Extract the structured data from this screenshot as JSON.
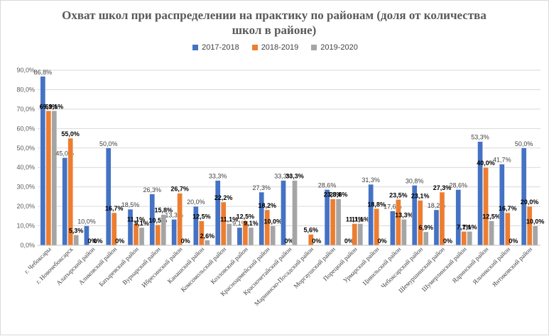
{
  "chart_data": {
    "type": "bar",
    "title": "Охват школ при распределении на практику по районам (доля от количества школ в районе)",
    "xlabel": "",
    "ylabel": "",
    "ylim": [
      0,
      90
    ],
    "y_ticks": [
      "0,0%",
      "10,0%",
      "20,0%",
      "30,0%",
      "40,0%",
      "50,0%",
      "60,0%",
      "70,0%",
      "80,0%",
      "90,0%"
    ],
    "grid": true,
    "legend_position": "top",
    "categories": [
      "г. Чебоксары",
      "г. Новочебоксарск",
      "Алатырский район",
      "Аликовский район",
      "Батыревский район",
      "Вурнарский район",
      "Ибресинский район",
      "Канашский район",
      "Комсомольский район",
      "Козловский район",
      "Красноармейский район",
      "Красночетайский район",
      "Мариинско-Посадский район",
      "Моргаушский район",
      "Порецкий район",
      "Урмарский район",
      "Цивильский район",
      "Чебоксарский район",
      "Шемуршинский район",
      "Шумерлинский район",
      "Ядринский район",
      "Яльчикский район",
      "Янтиковский район"
    ],
    "series": [
      {
        "name": "2017-2018",
        "color": "#4472C4",
        "values": [
          86.8,
          45.0,
          10.0,
          50.0,
          18.5,
          26.3,
          13.3,
          20.0,
          33.3,
          9.1,
          27.3,
          33.3,
          0,
          28.6,
          0,
          31.3,
          17.6,
          30.8,
          18.2,
          28.6,
          53.3,
          41.7,
          50.0
        ],
        "labels": [
          "86,8%",
          "45,0%",
          "10,0%",
          "50,0%",
          "18,5%",
          "26,3%",
          "13,3%",
          "20,0%",
          "33,3%",
          "9,1%",
          "27,3%",
          "33,3%",
          "",
          "28,6%",
          "0%",
          "31,3%",
          "17,6%",
          "30,8%",
          "18,2%",
          "28,6%",
          "53,3%",
          "41,7%",
          "50,0%"
        ]
      },
      {
        "name": "2018-2019",
        "color": "#ED7D31",
        "values": [
          69.1,
          55.0,
          0,
          16.7,
          11.1,
          10.5,
          26.7,
          12.5,
          22.2,
          12.5,
          18.2,
          0,
          5.6,
          23.8,
          11.1,
          18.8,
          23.5,
          23.1,
          27.3,
          7.1,
          40.0,
          16.7,
          20.0
        ],
        "labels": [
          "69,1%",
          "55,0%",
          "0%",
          "16,7%",
          "11,1%",
          "10,5%",
          "26,7%",
          "12,5%",
          "22,2%",
          "12,5%",
          "18,2%",
          "0%",
          "5,6%",
          "23,8%",
          "11,1%",
          "18,8%",
          "23,5%",
          "23,1%",
          "27,3%",
          "7,1%",
          "40,0%",
          "16,7%",
          "20,0%"
        ]
      },
      {
        "name": "2019-2020",
        "color": "#A5A5A5",
        "values": [
          69.1,
          5.3,
          0,
          0,
          9.1,
          15.8,
          0,
          2.6,
          11.1,
          9.1,
          10.0,
          33.3,
          0,
          23.8,
          11.1,
          0,
          13.3,
          6.9,
          0,
          7.1,
          12.5,
          0,
          10.0
        ],
        "labels": [
          "69,1%",
          "5,3%",
          "0%",
          "0%",
          "9,1%",
          "15,8%",
          "0%",
          "2,6%",
          "11,1%",
          "9,1%",
          "10,0%",
          "33,3%",
          "0%",
          "23,8%",
          "11,1%",
          "0%",
          "13,3%",
          "6,9%",
          "0%",
          "7,1%",
          "12,5%",
          "0%",
          "10,0%"
        ]
      }
    ]
  }
}
